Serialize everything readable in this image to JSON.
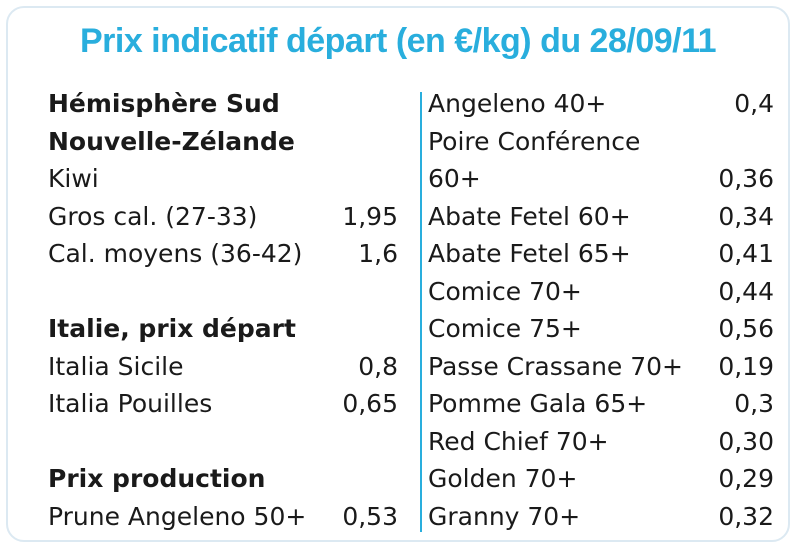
{
  "title": "Prix indicatif départ (en €/kg) du 28/09/11",
  "left": {
    "hemisphere": "Hémisphère Sud",
    "country": "Nouvelle-Zélande",
    "product": "Kiwi",
    "kiwi_items": [
      {
        "label": "Gros cal. (27-33)",
        "value": "1,95"
      },
      {
        "label": "Cal. moyens (36-42)",
        "value": "1,6"
      }
    ],
    "italy_heading": "Italie, prix départ",
    "italy_items": [
      {
        "label": "Italia Sicile",
        "value": "0,8"
      },
      {
        "label": "Italia Pouilles",
        "value": "0,65"
      }
    ],
    "production_heading": "Prix production",
    "production_items": [
      {
        "label": "Prune Angeleno 50+",
        "value": "0,53"
      }
    ]
  },
  "right": {
    "items": [
      {
        "label": "Angeleno 40+",
        "value": "0,4"
      },
      {
        "label": "Poire Conférence",
        "value": ""
      },
      {
        "label": "60+",
        "value": "0,36"
      },
      {
        "label": "Abate Fetel 60+",
        "value": "0,34"
      },
      {
        "label": "Abate Fetel 65+",
        "value": "0,41"
      },
      {
        "label": "Comice 70+",
        "value": "0,44"
      },
      {
        "label": "Comice 75+",
        "value": "0,56"
      },
      {
        "label": "Passe Crassane 70+",
        "value": "0,19"
      },
      {
        "label": "Pomme Gala 65+",
        "value": "0,3"
      },
      {
        "label": "Red Chief 70+",
        "value": "0,30"
      },
      {
        "label": "Golden 70+",
        "value": "0,29"
      },
      {
        "label": "Granny 70+",
        "value": "0,32"
      }
    ]
  },
  "colors": {
    "accent": "#29aedd",
    "border": "#dce9f2",
    "text": "#1a1a1a"
  }
}
